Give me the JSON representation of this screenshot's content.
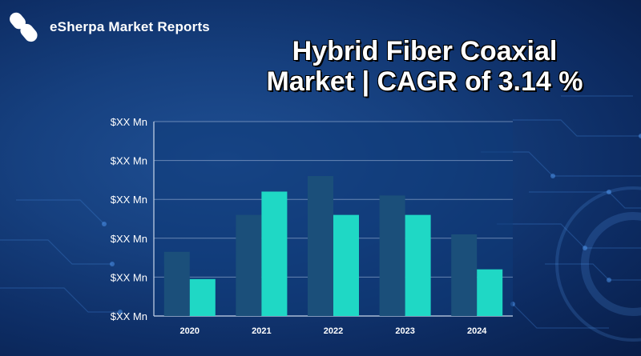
{
  "brand": {
    "name": "eSherpa Market Reports"
  },
  "title_lines": [
    "Hybrid Fiber Coaxial",
    "Market | CAGR of 3.14 %"
  ],
  "colors": {
    "series_dark": "#1b4f7a",
    "series_light": "#1fd8c5"
  },
  "chart_data": {
    "type": "bar",
    "categories": [
      "2020",
      "2021",
      "2022",
      "2023",
      "2024"
    ],
    "y_tick_labels": [
      "$XX Mn",
      "$XX Mn",
      "$XX Mn",
      "$XX Mn",
      "$XX Mn",
      "$XX Mn"
    ],
    "ylim": [
      0,
      5
    ],
    "grid": true,
    "legend": "none",
    "series": [
      {
        "values": [
          1.65,
          2.6,
          3.6,
          3.1,
          2.1
        ]
      },
      {
        "values": [
          0.95,
          3.2,
          2.6,
          2.6,
          1.2
        ]
      }
    ]
  }
}
